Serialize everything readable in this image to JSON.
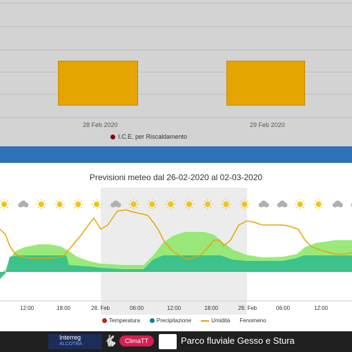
{
  "top_chart": {
    "dates": [
      "28 Feb 2020",
      "29 Feb 2020"
    ],
    "legend": "I.C.E. per Riscaldamento",
    "legend_color": "#8b0000",
    "bar_color": "#e6a400"
  },
  "forecast": {
    "title": "Previsioni meteo dal 26-02-2020 al 02-03-2020",
    "x_ticks": [
      "12:00",
      "18:00",
      "28. Feb",
      "06:00",
      "12:00",
      "18:00",
      "28. Feb",
      "06:00",
      "12:00"
    ],
    "legend": {
      "temperatura": "Temperatura",
      "precipitazione": "Precipitazione",
      "umidita": "Umidità",
      "fenomeno": "Fenomeno"
    },
    "weather_icons": [
      "sun-icon",
      "cloud-icon",
      "sun-icon",
      "sun-icon",
      "sun-icon",
      "sun-icon",
      "cloud-icon",
      "sun-icon",
      "sun-icon",
      "sun-icon",
      "sun-icon",
      "sun-icon",
      "sun-icon",
      "sun-icon",
      "cloud-icon",
      "cloud-icon",
      "sun-icon",
      "sun-icon",
      "cloud-icon",
      "cloud-icon"
    ]
  },
  "chart_data": {
    "type": "area",
    "title": "Previsioni meteo dal 26-02-2020 al 02-03-2020",
    "x_tick_labels": [
      "12:00",
      "18:00",
      "28. Feb",
      "06:00",
      "12:00",
      "18:00",
      "28. Feb",
      "06:00",
      "12:00"
    ],
    "series": [
      {
        "name": "Temperatura",
        "color": "#2bb673"
      },
      {
        "name": "Precipitazione",
        "color": "#0e7fa0"
      },
      {
        "name": "Umidità",
        "color": "#e6a400"
      }
    ]
  },
  "footer": {
    "interreg": "Interreg",
    "interreg_sub": "ALCOTRA",
    "climatt": "ClimaTT",
    "park": "Parco fluviale Gesso e Stura"
  }
}
